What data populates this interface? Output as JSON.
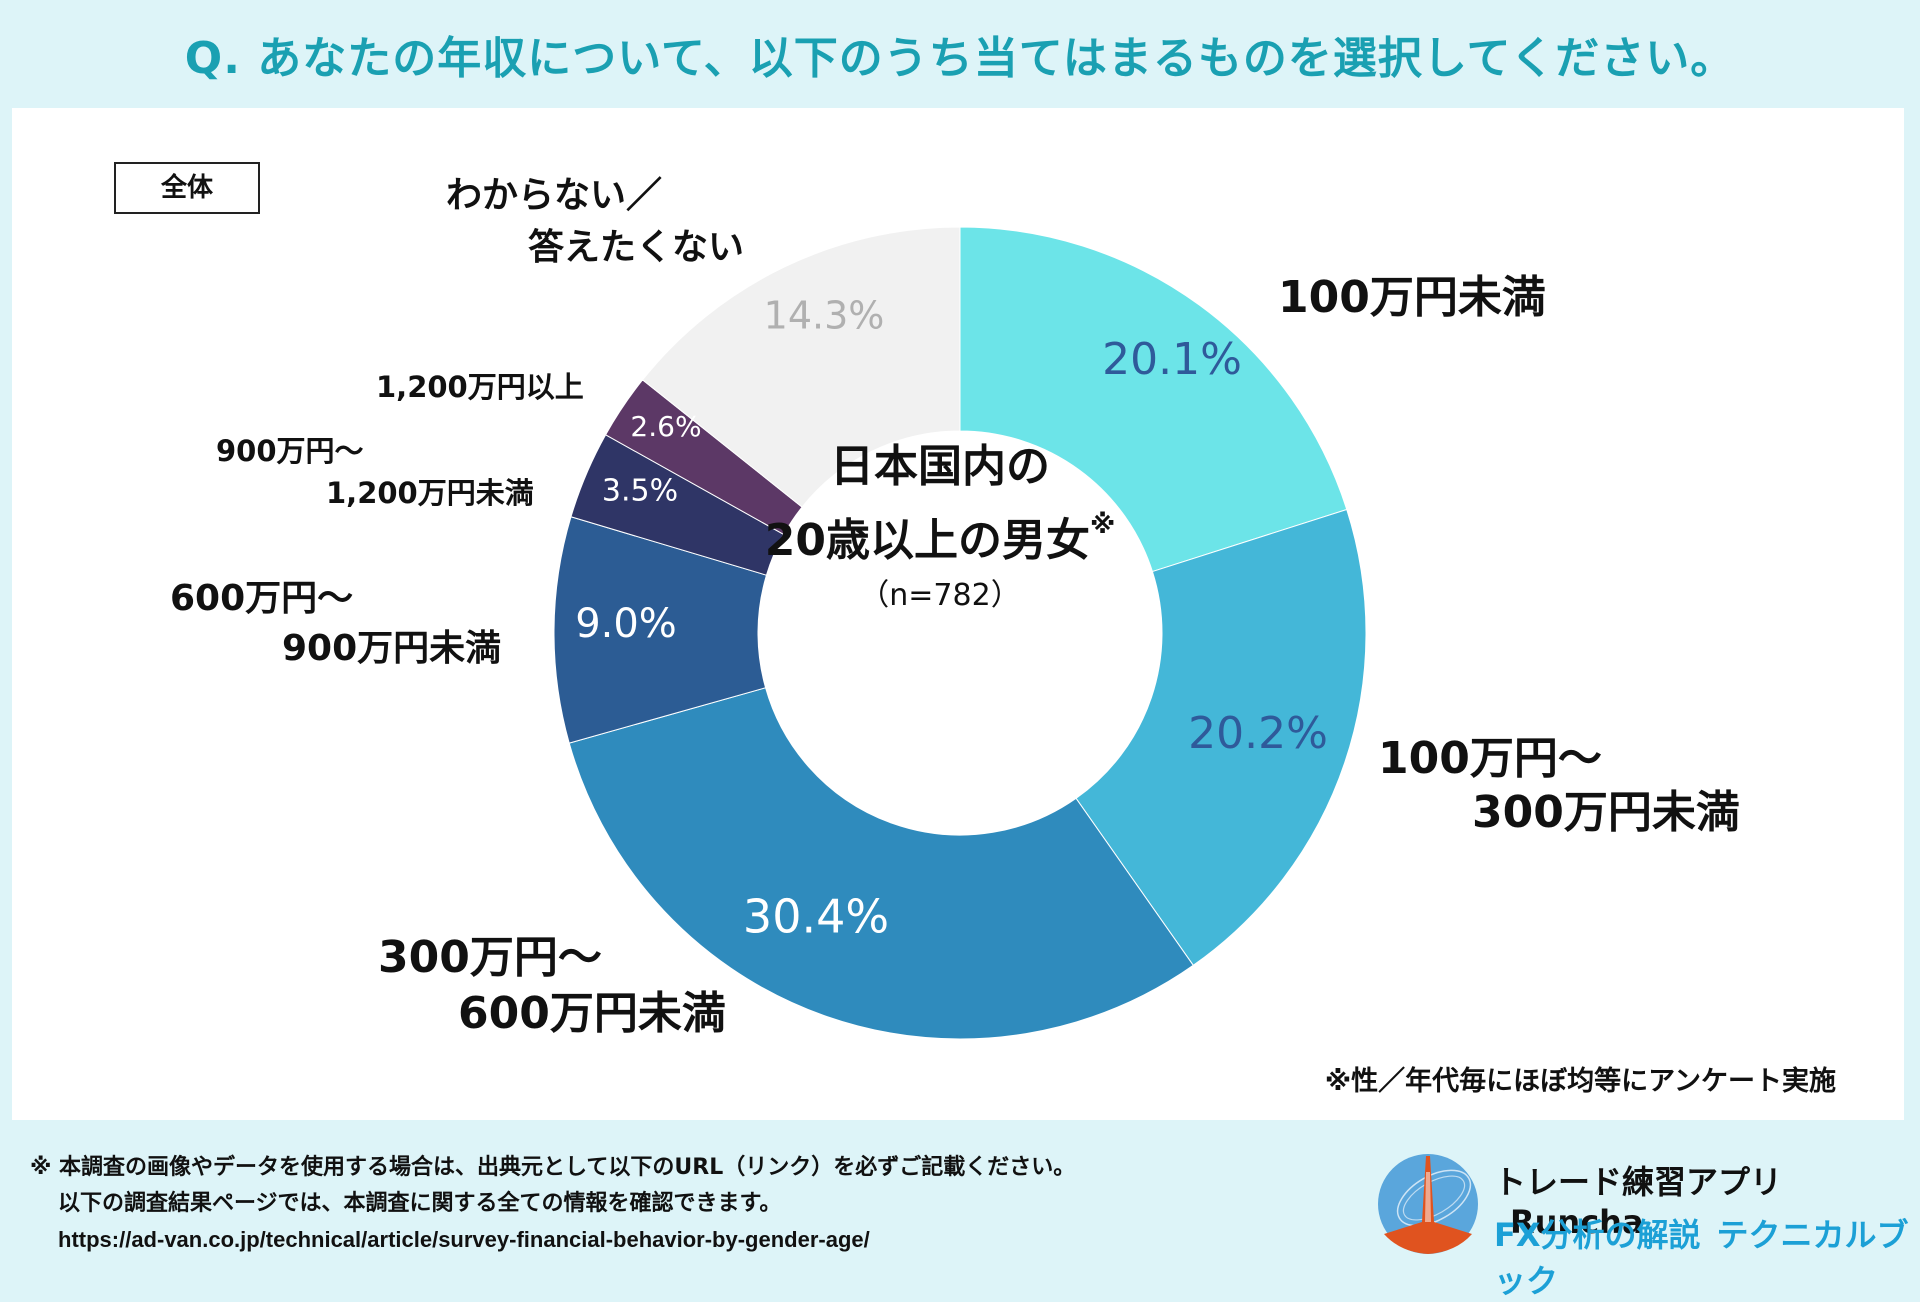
{
  "title": "Q. あなたの年収について、以下のうち当てはまるものを選択してください。",
  "badge": "全体",
  "center": {
    "line1": "日本国内の",
    "line2": "20歳以上の男女",
    "mark": "※",
    "n": "（n=782）"
  },
  "note": "※性／年代毎にほぼ均等にアンケート実施",
  "footer": {
    "line1": "※ 本調査の画像やデータを使用する場合は、出典元として以下のURL（リンク）を必ずご記載ください。",
    "line2": "以下の調査結果ページでは、本調査に関する全ての情報を確認できます。",
    "url": "https://ad-van.co.jp/technical/article/survey-financial-behavior-by-gender-age/"
  },
  "brand": {
    "app": "トレード練習アプリ",
    "app_name": "Runcha",
    "sub1": "FX分析の解説",
    "sub2": "テクニカルブック"
  },
  "chart_data": {
    "type": "pie",
    "variant": "donut",
    "title": "Q. あなたの年収について、以下のうち当てはまるものを選択してください。",
    "slices": [
      {
        "label_lines": [
          "100万円未満"
        ],
        "value": 20.1,
        "display": "20.1%",
        "color": "#6ce4e8",
        "text_color": "#2f5a9a"
      },
      {
        "label_lines": [
          "100万円〜",
          "300万円未満"
        ],
        "value": 20.2,
        "display": "20.2%",
        "color": "#44b7d8",
        "text_color": "#2f5a9a"
      },
      {
        "label_lines": [
          "300万円〜",
          "600万円未満"
        ],
        "value": 30.4,
        "display": "30.4%",
        "color": "#2f8bbd",
        "text_color": "#ffffff"
      },
      {
        "label_lines": [
          "600万円〜",
          "900万円未満"
        ],
        "value": 9.0,
        "display": "9.0%",
        "color": "#2c5c94",
        "text_color": "#ffffff"
      },
      {
        "label_lines": [
          "900万円〜",
          "1,200万円未満"
        ],
        "value": 3.5,
        "display": "3.5%",
        "color": "#2f3566",
        "text_color": "#ffffff"
      },
      {
        "label_lines": [
          "1,200万円以上"
        ],
        "value": 2.6,
        "display": "2.6%",
        "color": "#5c3866",
        "text_color": "#ffffff"
      },
      {
        "label_lines": [
          "わからない／",
          "答えたくない"
        ],
        "value": 14.3,
        "display": "14.3%",
        "color": "#f1f1f1",
        "text_color": "#b0b0b0"
      }
    ]
  }
}
